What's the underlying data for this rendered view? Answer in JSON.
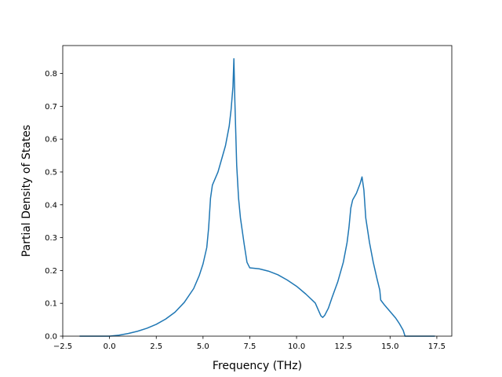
{
  "chart_data": {
    "type": "line",
    "title": "",
    "xlabel": "Frequency (THz)",
    "ylabel": "Partial Density of States",
    "xlim": [
      -2.5,
      18.3
    ],
    "ylim": [
      0.0,
      0.885
    ],
    "xticks": [
      -2.5,
      0.0,
      2.5,
      5.0,
      7.5,
      10.0,
      12.5,
      15.0,
      17.5
    ],
    "xtick_labels": [
      "−2.5",
      "0.0",
      "2.5",
      "5.0",
      "7.5",
      "10.0",
      "12.5",
      "15.0",
      "17.5"
    ],
    "yticks": [
      0.0,
      0.1,
      0.2,
      0.3,
      0.4,
      0.5,
      0.6,
      0.7,
      0.8
    ],
    "ytick_labels": [
      "0.0",
      "0.1",
      "0.2",
      "0.3",
      "0.4",
      "0.5",
      "0.6",
      "0.7",
      "0.8"
    ],
    "grid": false,
    "legend": false,
    "series": [
      {
        "color": "#1f77b4",
        "x": [
          -1.6,
          -1.0,
          -0.5,
          0.0,
          0.5,
          1.0,
          1.5,
          2.0,
          2.5,
          3.0,
          3.5,
          4.0,
          4.5,
          4.8,
          5.0,
          5.2,
          5.3,
          5.4,
          5.5,
          5.8,
          6.0,
          6.2,
          6.4,
          6.5,
          6.6,
          6.65,
          6.7,
          6.8,
          6.9,
          7.0,
          7.2,
          7.35,
          7.5,
          8.0,
          8.5,
          9.0,
          9.5,
          10.0,
          10.5,
          11.0,
          11.2,
          11.3,
          11.4,
          11.5,
          11.7,
          11.9,
          12.2,
          12.5,
          12.7,
          12.8,
          12.9,
          13.0,
          13.2,
          13.4,
          13.5,
          13.6,
          13.7,
          13.9,
          14.1,
          14.3,
          14.45,
          14.5,
          14.7,
          15.0,
          15.3,
          15.5,
          15.7,
          15.8,
          16.0,
          16.5,
          17.0,
          17.4
        ],
        "y": [
          0.0,
          0.0,
          0.0,
          0.0,
          0.003,
          0.008,
          0.015,
          0.024,
          0.036,
          0.052,
          0.073,
          0.103,
          0.145,
          0.185,
          0.22,
          0.27,
          0.33,
          0.42,
          0.46,
          0.5,
          0.54,
          0.58,
          0.64,
          0.69,
          0.76,
          0.845,
          0.72,
          0.52,
          0.42,
          0.36,
          0.28,
          0.225,
          0.208,
          0.205,
          0.198,
          0.187,
          0.171,
          0.152,
          0.128,
          0.101,
          0.075,
          0.062,
          0.057,
          0.063,
          0.085,
          0.118,
          0.165,
          0.225,
          0.285,
          0.33,
          0.39,
          0.415,
          0.435,
          0.465,
          0.485,
          0.445,
          0.36,
          0.285,
          0.225,
          0.175,
          0.14,
          0.11,
          0.095,
          0.075,
          0.055,
          0.038,
          0.018,
          0.0,
          0.0,
          0.0,
          0.0,
          0.0
        ]
      }
    ]
  }
}
